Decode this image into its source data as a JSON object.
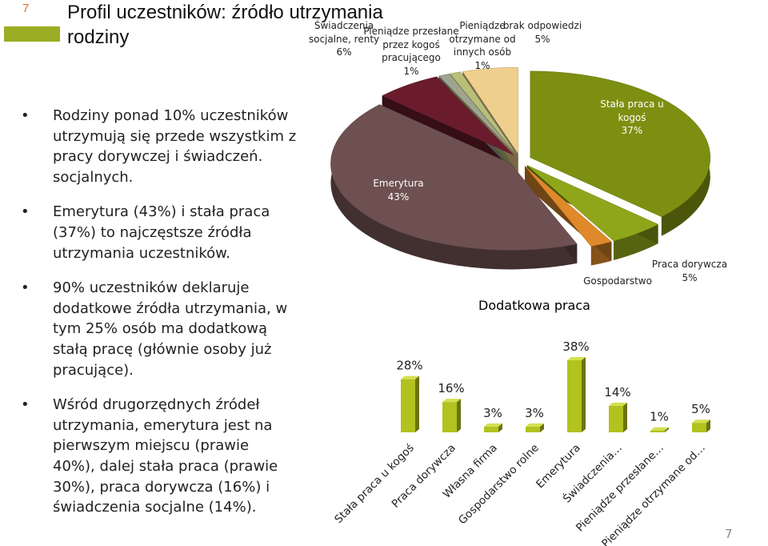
{
  "slide_number": "7",
  "footer_number": "7",
  "title_lines": [
    "Profil uczestników: źródło utrzymania",
    "rodziny"
  ],
  "bullets": [
    [
      "Rodziny ponad 10% uczestników",
      "utrzymują się przede wszystkim z",
      "pracy dorywczej i świadczeń.",
      "socjalnych."
    ],
    [
      "Emerytura (43%) i stała praca",
      "(37%) to najczęstsze źródła",
      "utrzymania uczestników."
    ],
    [
      "90% uczestników deklaruje",
      "dodatkowe źródła utrzymania, w",
      "tym 25% osób ma dodatkową",
      "stałą pracę (głównie osoby już",
      "pracujące)."
    ],
    [
      "Wśród drugorzędnych źródeł",
      "utrzymania, emerytura jest na",
      "pierwszym miejscu (prawie",
      "40%), dalej stała praca (prawie",
      "30%), praca dorywcza (16%) i",
      "świadczenia socjalne (14%)."
    ]
  ],
  "chart_data": [
    {
      "type": "pie",
      "categories": [
        "Stała praca u kogoś",
        "Praca dorywcza",
        "Gospodarstwo",
        "Emerytura",
        "Świadczenia socjalne, renty",
        "Pieniądze przesłane przez kogoś pracującego",
        "Pieniądze otrzymane od innych osób",
        "brak odpowiedzi"
      ],
      "values": [
        37,
        5,
        2,
        43,
        6,
        1,
        1,
        5
      ],
      "value_labels": [
        "37%",
        "5%",
        null,
        "43%",
        "6%",
        "1%",
        "1%",
        "5%"
      ],
      "colors": [
        "#7d8f10",
        "#8fa61a",
        "#e0892a",
        "#6e5050",
        "#6a1c2c",
        "#9ea48e",
        "#b7bf78",
        "#efcf8e"
      ]
    },
    {
      "type": "bar",
      "title": "Dodatkowa praca",
      "categories": [
        "Stała praca u kogoś",
        "Praca dorywcza",
        "Własna firma",
        "Gospodarstwo rolne",
        "Emerytura",
        "Świadczenia…",
        "Pieniądze przesłane…",
        "Pieniądze otrzymane od…"
      ],
      "values": [
        28,
        16,
        3,
        3,
        38,
        14,
        1,
        5
      ],
      "value_labels": [
        "28%",
        "16%",
        "3%",
        "3%",
        "38%",
        "14%",
        "1%",
        "5%"
      ],
      "color": "#b2c21e"
    }
  ]
}
